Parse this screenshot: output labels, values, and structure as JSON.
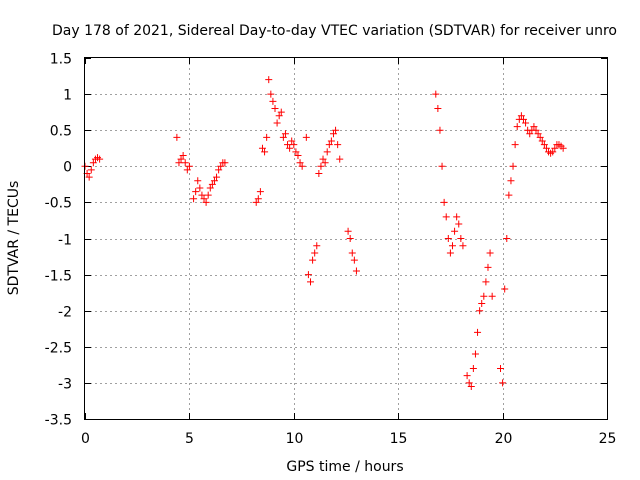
{
  "chart_data": {
    "type": "scatter",
    "title": "Day 178 of 2021, Sidereal Day-to-day VTEC variation (SDTVAR) for receiver unro",
    "xlabel": "GPS time / hours",
    "ylabel": "SDTVAR / TECUs",
    "xlim": [
      0,
      25
    ],
    "ylim": [
      -3.5,
      1.5
    ],
    "xticks": [
      0,
      5,
      10,
      15,
      20,
      25
    ],
    "xtick_labels": [
      "0",
      "5",
      "10",
      "15",
      "20",
      "25"
    ],
    "yticks": [
      -3.5,
      -3,
      -2.5,
      -2,
      -1.5,
      -1,
      -0.5,
      0,
      0.5,
      1,
      1.5
    ],
    "ytick_labels": [
      "-3.5",
      "-3",
      "-2.5",
      "-2",
      "-1.5",
      "-1",
      "-0.5",
      "0",
      "0.5",
      "1",
      "1.5"
    ],
    "grid": true,
    "marker": "+",
    "color": "#ff0000",
    "series": [
      {
        "name": "SDTVAR",
        "x": [
          0.0,
          0.1,
          0.2,
          0.3,
          0.4,
          0.5,
          0.6,
          0.7,
          4.4,
          4.5,
          4.6,
          4.7,
          4.8,
          4.9,
          5.0,
          5.2,
          5.3,
          5.4,
          5.5,
          5.6,
          5.7,
          5.8,
          5.9,
          6.0,
          6.1,
          6.2,
          6.3,
          6.4,
          6.5,
          6.6,
          6.7,
          8.2,
          8.3,
          8.4,
          8.5,
          8.6,
          8.7,
          8.8,
          8.9,
          9.0,
          9.1,
          9.2,
          9.3,
          9.4,
          9.5,
          9.6,
          9.7,
          9.8,
          9.9,
          10.0,
          10.1,
          10.2,
          10.3,
          10.4,
          10.6,
          10.7,
          10.8,
          10.9,
          11.0,
          11.1,
          11.2,
          11.3,
          11.4,
          11.5,
          11.6,
          11.7,
          11.8,
          11.9,
          12.0,
          12.1,
          12.2,
          12.6,
          12.7,
          12.8,
          12.9,
          13.0,
          16.8,
          16.9,
          17.0,
          17.1,
          17.2,
          17.3,
          17.4,
          17.5,
          17.6,
          17.7,
          17.8,
          17.9,
          18.0,
          18.1,
          18.3,
          18.4,
          18.5,
          18.6,
          18.7,
          18.8,
          18.9,
          19.0,
          19.1,
          19.2,
          19.3,
          19.4,
          19.5,
          19.9,
          20.0,
          20.1,
          20.2,
          20.3,
          20.4,
          20.5,
          20.6,
          20.7,
          20.8,
          20.9,
          21.0,
          21.1,
          21.2,
          21.3,
          21.4,
          21.5,
          21.6,
          21.7,
          21.8,
          21.9,
          22.0,
          22.1,
          22.2,
          22.3,
          22.4,
          22.5,
          22.6,
          22.7,
          22.8,
          22.9
        ],
        "y": [
          0.0,
          -0.1,
          -0.15,
          -0.05,
          0.05,
          0.1,
          0.12,
          0.1,
          0.4,
          0.05,
          0.1,
          0.15,
          0.05,
          -0.05,
          0.0,
          -0.45,
          -0.35,
          -0.2,
          -0.3,
          -0.4,
          -0.45,
          -0.5,
          -0.4,
          -0.3,
          -0.25,
          -0.2,
          -0.15,
          -0.05,
          0.0,
          0.05,
          0.05,
          -0.5,
          -0.45,
          -0.35,
          0.25,
          0.2,
          0.4,
          1.2,
          1.0,
          0.9,
          0.8,
          0.6,
          0.7,
          0.75,
          0.4,
          0.45,
          0.3,
          0.25,
          0.35,
          0.3,
          0.2,
          0.15,
          0.05,
          0.0,
          0.4,
          -1.5,
          -1.6,
          -1.3,
          -1.2,
          -1.1,
          -0.1,
          0.0,
          0.1,
          0.05,
          0.2,
          0.3,
          0.35,
          0.45,
          0.5,
          0.3,
          0.1,
          -0.9,
          -1.0,
          -1.2,
          -1.3,
          -1.45,
          1.0,
          0.8,
          0.5,
          0.0,
          -0.5,
          -0.7,
          -1.0,
          -1.2,
          -1.1,
          -0.9,
          -0.7,
          -0.8,
          -1.0,
          -1.1,
          -2.9,
          -3.0,
          -3.05,
          -2.8,
          -2.6,
          -2.3,
          -2.0,
          -1.9,
          -1.8,
          -1.6,
          -1.4,
          -1.2,
          -1.8,
          -2.8,
          -3.0,
          -1.7,
          -1.0,
          -0.4,
          -0.2,
          0.0,
          0.3,
          0.55,
          0.65,
          0.7,
          0.65,
          0.6,
          0.5,
          0.45,
          0.5,
          0.55,
          0.5,
          0.45,
          0.4,
          0.35,
          0.3,
          0.25,
          0.2,
          0.18,
          0.2,
          0.25,
          0.3,
          0.3,
          0.28,
          0.25
        ]
      }
    ]
  }
}
